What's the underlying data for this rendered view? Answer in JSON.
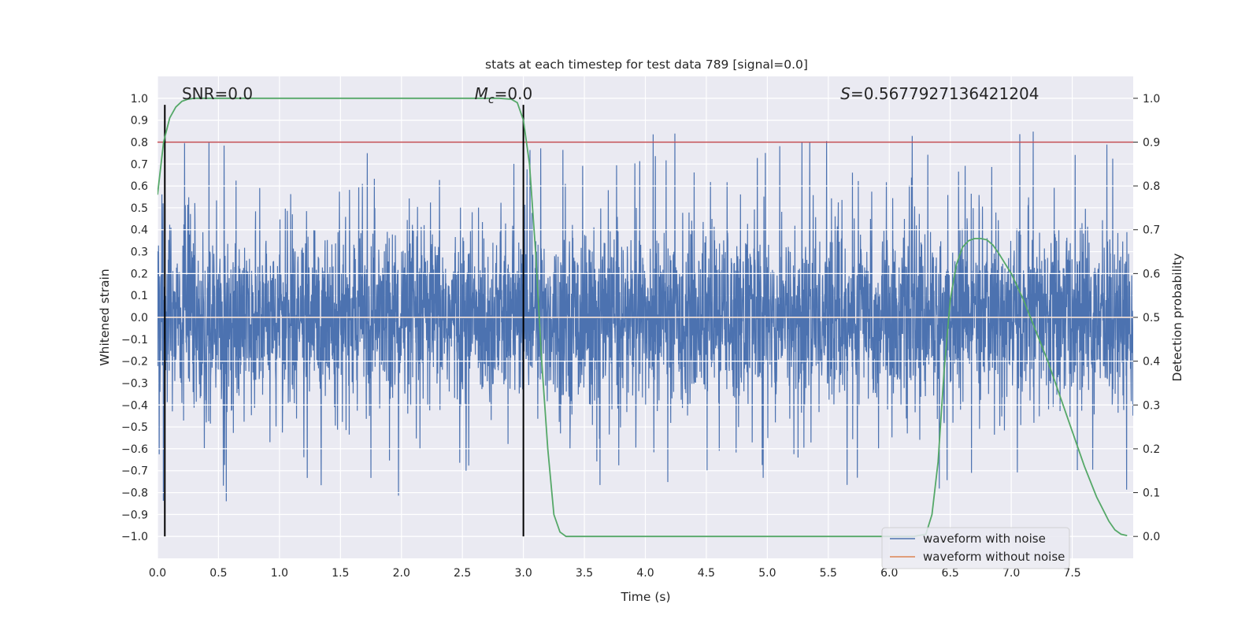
{
  "chart_data": {
    "type": "line",
    "title": "stats at each timestep for test data 789 [signal=0.0]",
    "xlabel": "Time (s)",
    "ylabel": "Whitened strain",
    "y2label": "Detection probability",
    "xlim": [
      0.0,
      8.0
    ],
    "ylim": [
      -1.1,
      1.1
    ],
    "y2lim": [
      -0.05,
      1.05
    ],
    "xticks": [
      0.0,
      0.5,
      1.0,
      1.5,
      2.0,
      2.5,
      3.0,
      3.5,
      4.0,
      4.5,
      5.0,
      5.5,
      6.0,
      6.5,
      7.0,
      7.5
    ],
    "yticks": [
      -1.0,
      -0.9,
      -0.8,
      -0.7,
      -0.6,
      -0.5,
      -0.4,
      -0.3,
      -0.2,
      -0.1,
      0.0,
      0.1,
      0.2,
      0.3,
      0.4,
      0.5,
      0.6,
      0.7,
      0.8,
      0.9,
      1.0
    ],
    "y2ticks": [
      0.0,
      0.1,
      0.2,
      0.3,
      0.4,
      0.5,
      0.6,
      0.7,
      0.8,
      0.9,
      1.0
    ],
    "xtick_labels": [
      "0.0",
      "0.5",
      "1.0",
      "1.5",
      "2.0",
      "2.5",
      "3.0",
      "3.5",
      "4.0",
      "4.5",
      "5.0",
      "5.5",
      "6.0",
      "6.5",
      "7.0",
      "7.5"
    ],
    "ytick_labels": [
      "−1.0",
      "−0.9",
      "−0.8",
      "−0.7",
      "−0.6",
      "−0.5",
      "−0.4",
      "−0.3",
      "−0.2",
      "−0.1",
      "0.0",
      "0.1",
      "0.2",
      "0.3",
      "0.4",
      "0.5",
      "0.6",
      "0.7",
      "0.8",
      "0.9",
      "1.0"
    ],
    "y2tick_labels": [
      "0.0",
      "0.1",
      "0.2",
      "0.3",
      "0.4",
      "0.5",
      "0.6",
      "0.7",
      "0.8",
      "0.9",
      "1.0"
    ],
    "grid": true,
    "legend_position": "lower-right",
    "series": [
      {
        "name": "waveform with noise",
        "color": "#4c72b0",
        "axis": "left",
        "description": "dense whitened noise, bulk within ±0.4, peaks roughly ±0.85"
      },
      {
        "name": "waveform without noise",
        "color": "#dd8452",
        "axis": "left",
        "x": [
          0.0,
          8.0
        ],
        "y": [
          0.0,
          0.0
        ]
      },
      {
        "name": "detection probability",
        "color": "#55a868",
        "axis": "right",
        "x": [
          0.0,
          0.05,
          0.1,
          0.15,
          0.2,
          0.25,
          0.3,
          0.35,
          0.4,
          0.6,
          1.0,
          2.0,
          2.8,
          2.9,
          2.95,
          3.0,
          3.05,
          3.1,
          3.15,
          3.2,
          3.25,
          3.3,
          3.35,
          3.4,
          4.0,
          5.0,
          6.0,
          6.2,
          6.3,
          6.35,
          6.4,
          6.45,
          6.5,
          6.55,
          6.6,
          6.65,
          6.7,
          6.75,
          6.8,
          6.85,
          6.9,
          7.0,
          7.1,
          7.2,
          7.3,
          7.4,
          7.5,
          7.6,
          7.7,
          7.8,
          7.85,
          7.9,
          7.95
        ],
        "y": [
          0.78,
          0.9,
          0.955,
          0.98,
          0.993,
          0.998,
          1.0,
          1.0,
          1.0,
          1.0,
          1.0,
          1.0,
          1.0,
          0.998,
          0.99,
          0.95,
          0.85,
          0.65,
          0.4,
          0.2,
          0.05,
          0.01,
          0.0,
          0.0,
          0.0,
          0.0,
          0.0,
          0.0,
          0.005,
          0.05,
          0.17,
          0.38,
          0.54,
          0.62,
          0.66,
          0.675,
          0.68,
          0.68,
          0.677,
          0.665,
          0.645,
          0.6,
          0.54,
          0.47,
          0.4,
          0.32,
          0.24,
          0.16,
          0.09,
          0.035,
          0.015,
          0.005,
          0.002
        ]
      }
    ],
    "threshold_line": {
      "axis": "right",
      "y": 0.9,
      "color": "#c44e52"
    },
    "vertical_markers": [
      0.06,
      3.0
    ],
    "annotations": [
      {
        "text": "SNR=0.0",
        "x": 0.2
      },
      {
        "text": "Mc=0.0",
        "x": 2.6
      },
      {
        "text": "S=0.5677927136421204",
        "x": 5.6
      }
    ],
    "legend": [
      "waveform with noise",
      "waveform without noise"
    ]
  }
}
